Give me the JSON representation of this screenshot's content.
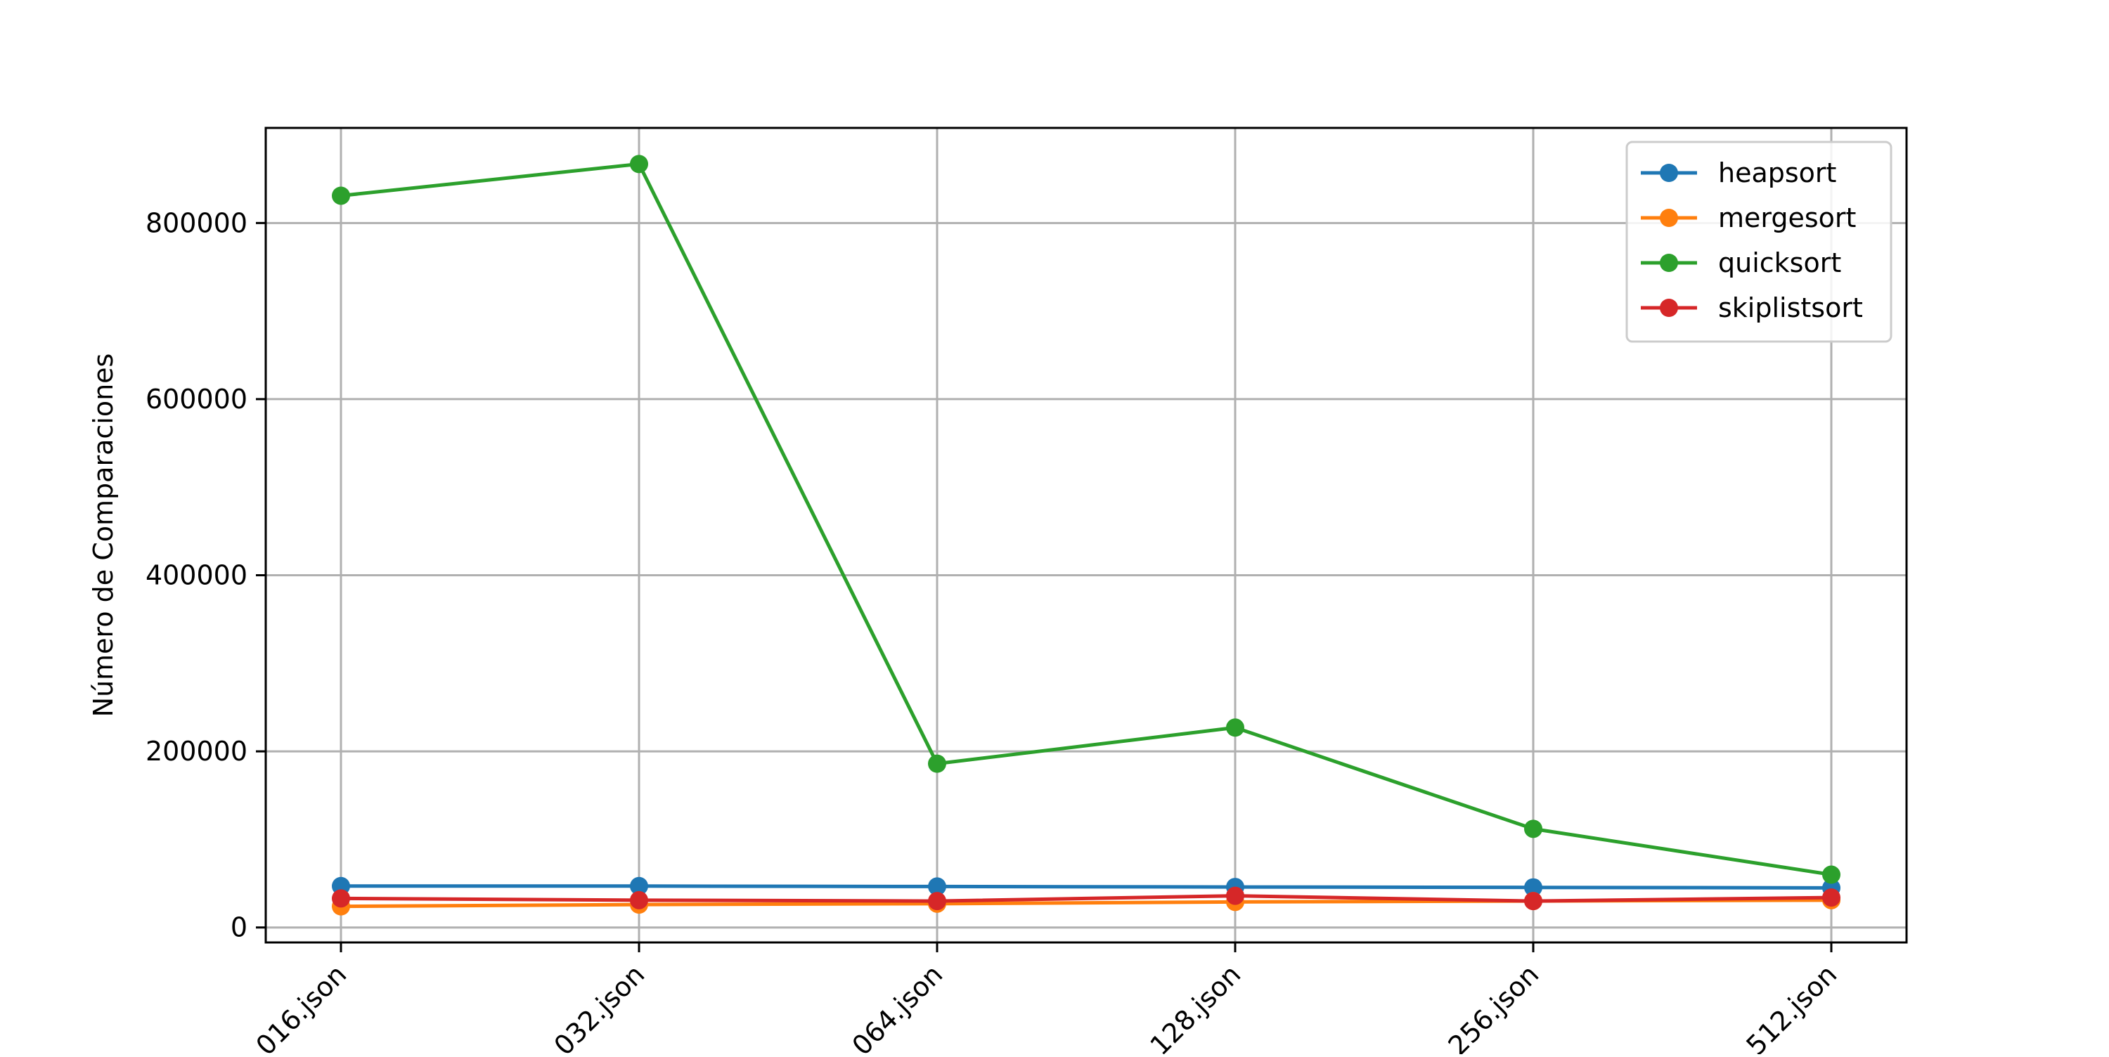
{
  "chart_data": {
    "type": "line",
    "title": "",
    "xlabel": "",
    "ylabel": "Número de Comparaciones",
    "categories": [
      "016.json",
      "032.json",
      "064.json",
      "128.json",
      "256.json",
      "512.json"
    ],
    "ylim": [
      -17000,
      908000
    ],
    "yticks": [
      0,
      200000,
      400000,
      600000,
      800000
    ],
    "grid": true,
    "legend_position": "top-right",
    "series": [
      {
        "name": "heapsort",
        "color": "#1f77b4",
        "values": [
          47000,
          47000,
          46500,
          46000,
          45500,
          45000
        ]
      },
      {
        "name": "mergesort",
        "color": "#ff7f0e",
        "values": [
          24000,
          26000,
          27000,
          29000,
          30000,
          31000
        ]
      },
      {
        "name": "quicksort",
        "color": "#2ca02c",
        "values": [
          831000,
          867000,
          186000,
          227000,
          112000,
          60000
        ]
      },
      {
        "name": "skiplistsort",
        "color": "#d62728",
        "values": [
          33000,
          31000,
          30000,
          36000,
          30000,
          34000
        ]
      }
    ]
  }
}
